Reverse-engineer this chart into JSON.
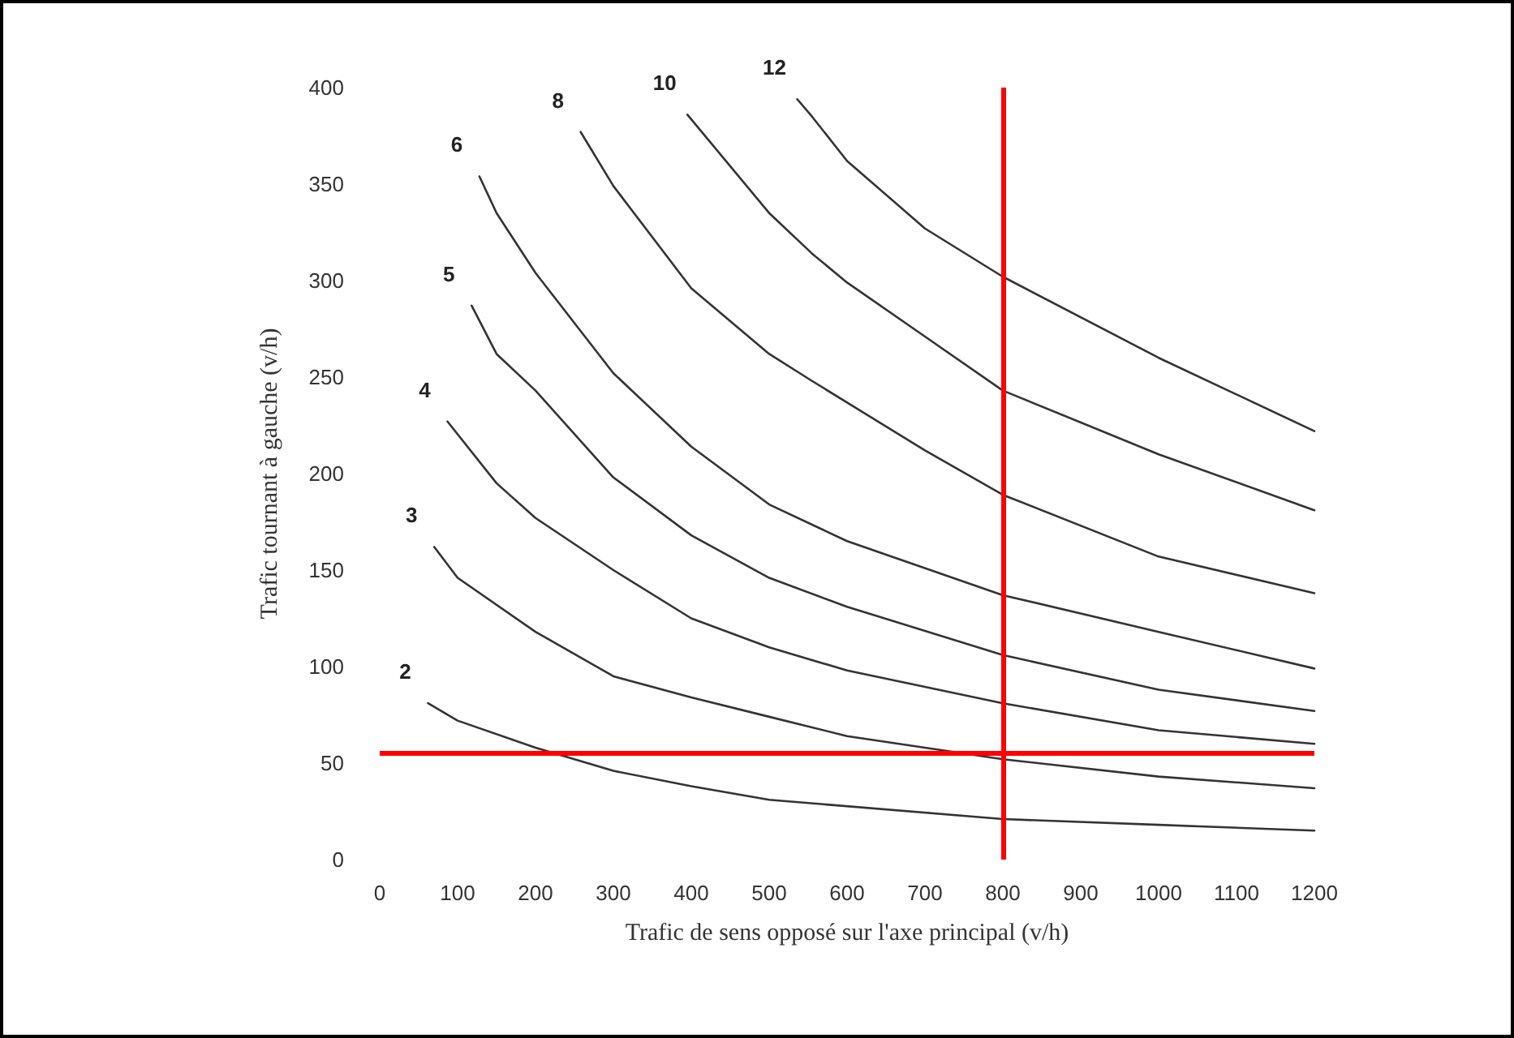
{
  "chart_data": {
    "type": "line",
    "xlabel": "Trafic de sens opposé sur l'axe principal (v/h)",
    "ylabel": "Trafic tournant à gauche (v/h)",
    "xlim": [
      0,
      1200
    ],
    "xticks": [
      0,
      100,
      200,
      300,
      400,
      500,
      600,
      700,
      800,
      900,
      1000,
      1100,
      1200
    ],
    "ylim": [
      0,
      400
    ],
    "yticks": [
      0,
      50,
      100,
      150,
      200,
      250,
      300,
      350,
      400
    ],
    "grid": false,
    "legend": false,
    "marker": "none",
    "line_style": "solid",
    "series": [
      {
        "name": "2",
        "color": "#333333",
        "x": [
          62,
          100,
          200,
          300,
          400,
          500,
          800,
          1000,
          1200
        ],
        "values": [
          81,
          72,
          58,
          46,
          38,
          31,
          21,
          18,
          15
        ]
      },
      {
        "name": "3",
        "color": "#333333",
        "x": [
          70,
          100,
          200,
          300,
          400,
          500,
          600,
          800,
          1000,
          1200
        ],
        "values": [
          162,
          146,
          118,
          95,
          84,
          74,
          64,
          52,
          43,
          37
        ]
      },
      {
        "name": "4",
        "color": "#333333",
        "x": [
          87,
          150,
          200,
          300,
          400,
          500,
          600,
          800,
          1000,
          1200
        ],
        "values": [
          227,
          195,
          177,
          150,
          125,
          110,
          98,
          81,
          67,
          60
        ]
      },
      {
        "name": "5",
        "color": "#333333",
        "x": [
          118,
          150,
          200,
          300,
          400,
          500,
          600,
          800,
          1000,
          1200
        ],
        "values": [
          287,
          262,
          243,
          198,
          168,
          146,
          131,
          106,
          88,
          77
        ]
      },
      {
        "name": "6",
        "color": "#333333",
        "x": [
          128,
          150,
          200,
          300,
          400,
          500,
          600,
          800,
          1000,
          1200
        ],
        "values": [
          354,
          335,
          304,
          252,
          214,
          184,
          165,
          137,
          118,
          99
        ]
      },
      {
        "name": "8",
        "color": "#333333",
        "x": [
          258,
          300,
          400,
          500,
          555,
          700,
          800,
          1000,
          1200
        ],
        "values": [
          377,
          349,
          296,
          262,
          248,
          212,
          189,
          157,
          138
        ]
      },
      {
        "name": "10",
        "color": "#333333",
        "x": [
          395,
          500,
          555,
          600,
          700,
          800,
          1000,
          1200
        ],
        "values": [
          386,
          335,
          314,
          299,
          271,
          243,
          210,
          181
        ]
      },
      {
        "name": "12",
        "color": "#333333",
        "x": [
          536,
          555,
          600,
          700,
          800,
          1000,
          1200
        ],
        "values": [
          394,
          385,
          362,
          327,
          302,
          260,
          222
        ]
      }
    ],
    "ref_lines": [
      {
        "axis": "x",
        "value": 800,
        "color": "#ff0000"
      },
      {
        "axis": "y",
        "value": 55,
        "color": "#ff0000"
      }
    ]
  }
}
